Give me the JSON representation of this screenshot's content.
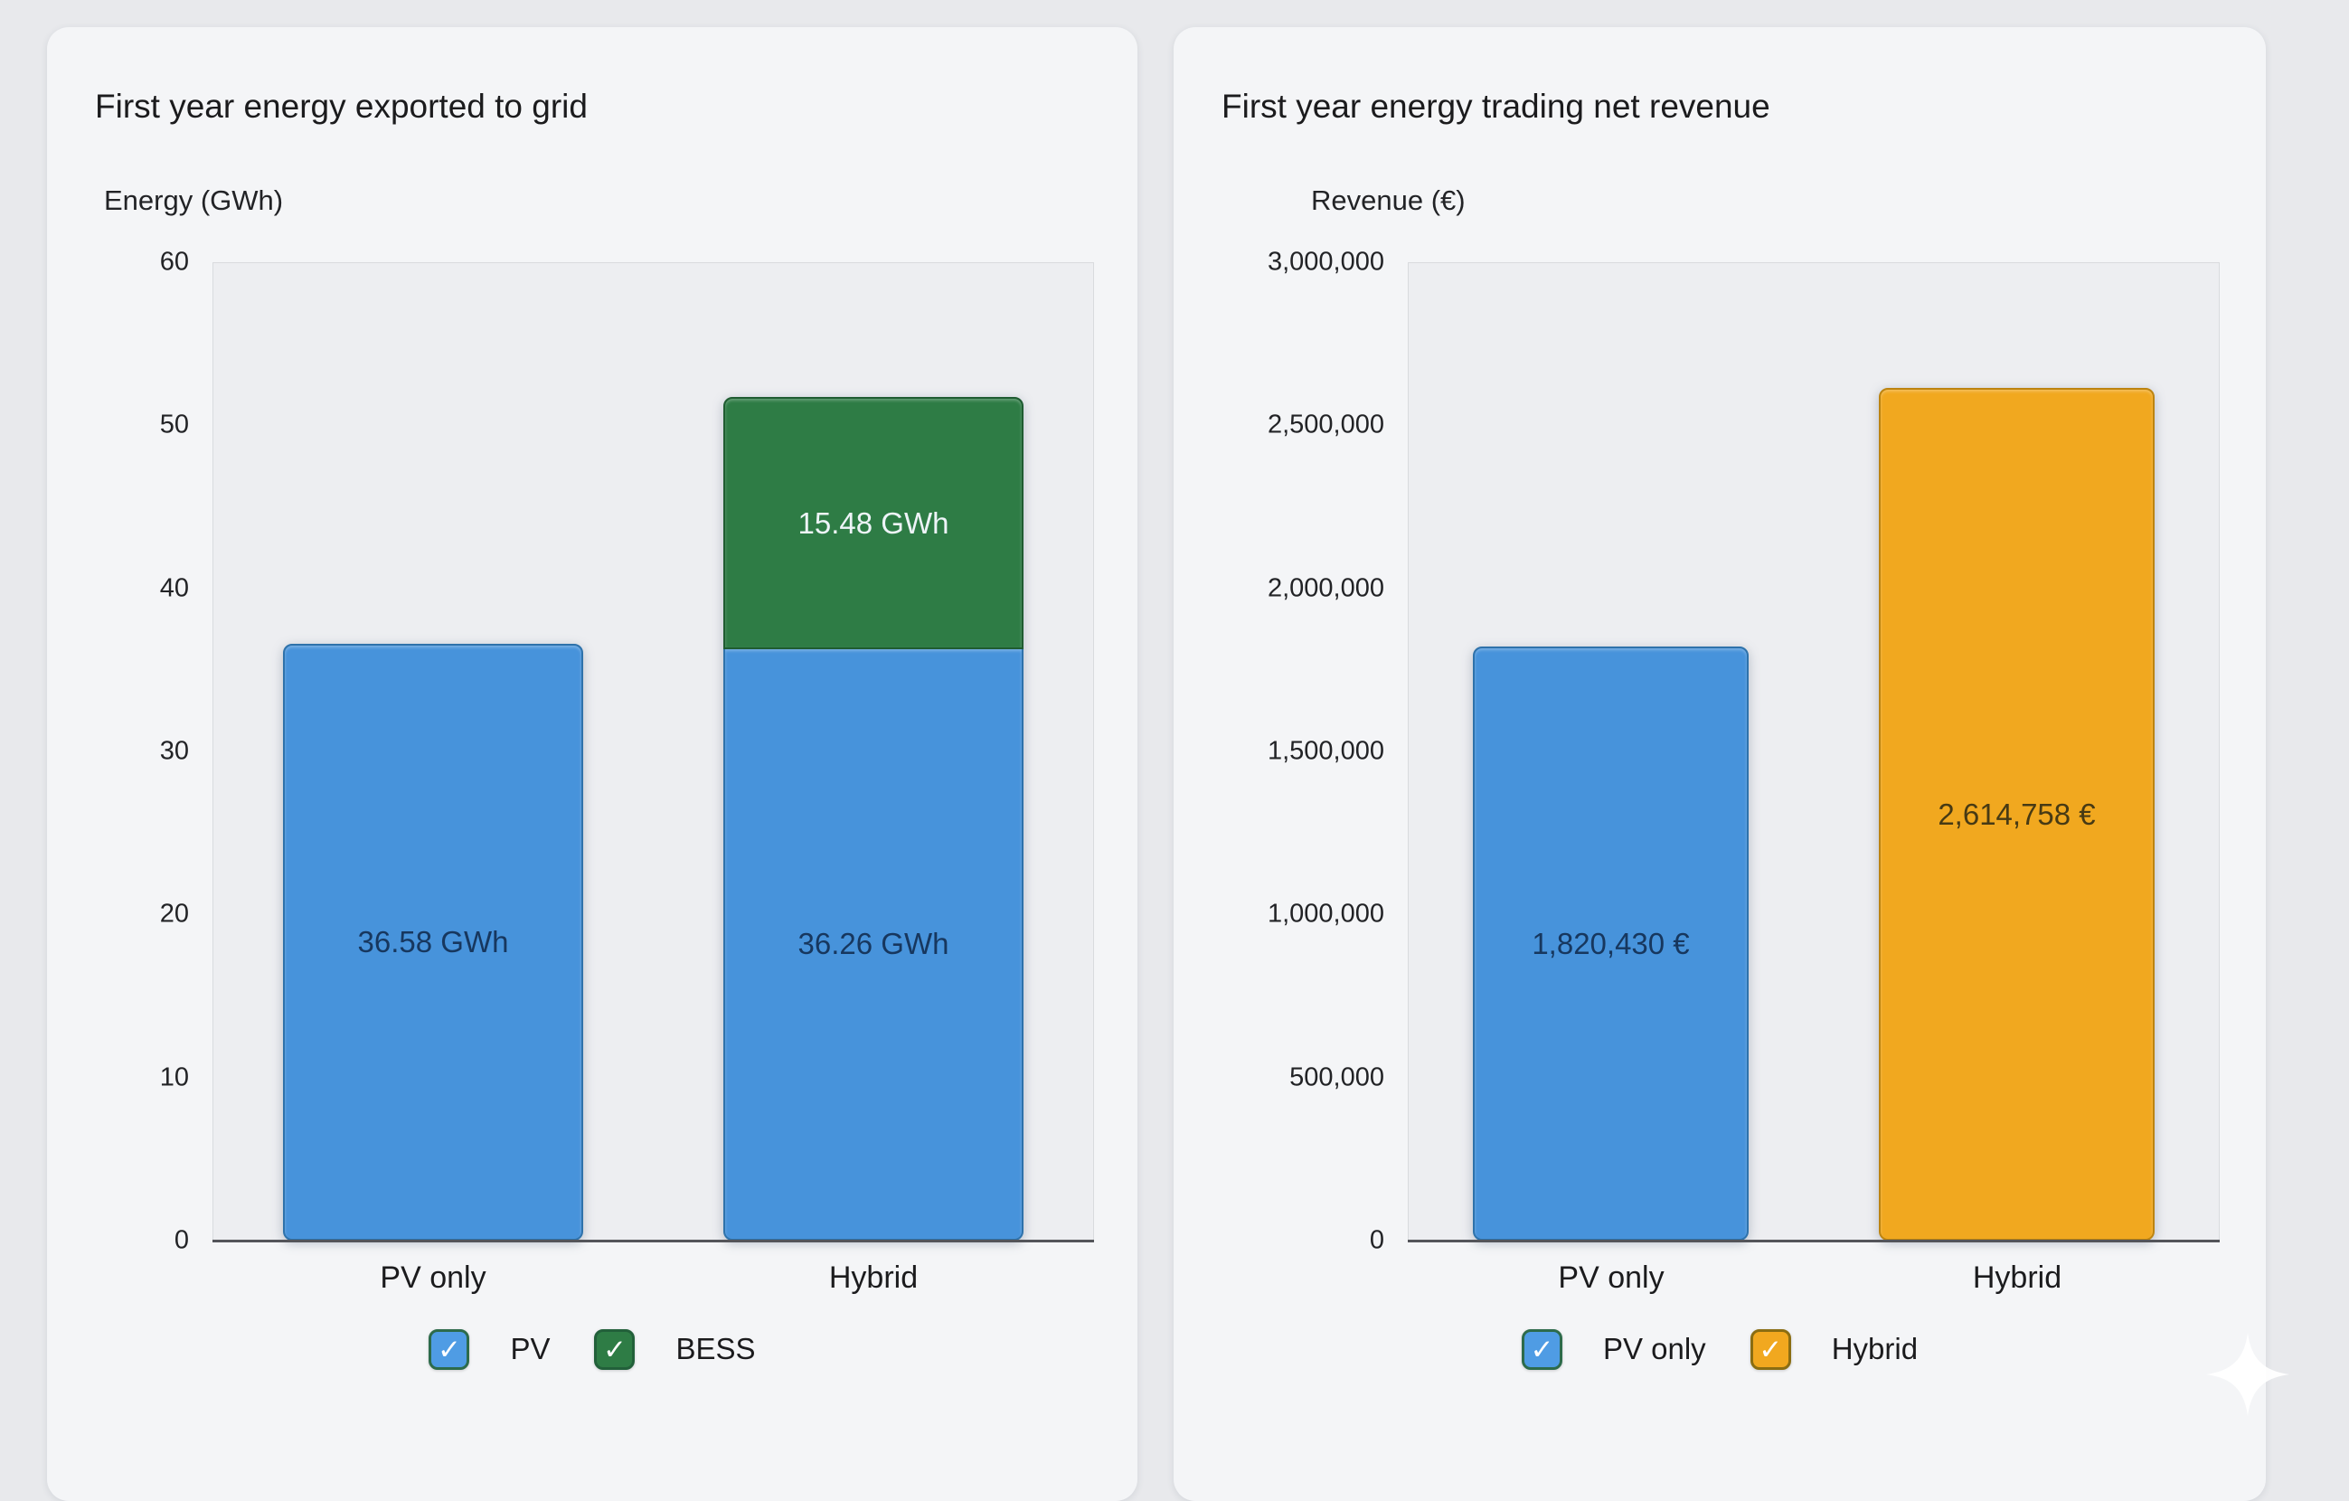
{
  "page": {
    "background": "#e8e9ec",
    "card_background": "#f4f5f7",
    "check_glyph": "✓"
  },
  "chart_data": [
    {
      "type": "bar",
      "stacked": true,
      "title": "First year energy exported to grid",
      "axis_title": "Energy (GWh)",
      "categories": [
        "PV only",
        "Hybrid"
      ],
      "ylim": [
        0,
        60
      ],
      "ytick_labels": [
        "60",
        "50",
        "40",
        "30",
        "20",
        "10",
        "0"
      ],
      "grid": false,
      "legend_position": "bottom",
      "series": [
        {
          "name": "PV",
          "color": "#4793db",
          "border_color": "#2e72ab",
          "values": [
            36.58,
            36.26
          ],
          "value_labels": [
            "36.58 GWh",
            "36.26 GWh"
          ],
          "label_color": "#17375e"
        },
        {
          "name": "BESS",
          "color": "#2e7c45",
          "border_color": "#1f5c31",
          "values": [
            null,
            15.48
          ],
          "value_labels": [
            null,
            "15.48 GWh"
          ],
          "label_color": "#eef4f8"
        }
      ],
      "legend": [
        {
          "label": "PV",
          "color": "#4f9ce4",
          "border": "#2d6b4b",
          "checked": true
        },
        {
          "label": "BESS",
          "color": "#2e7c45",
          "border": "#22603a",
          "checked": true
        }
      ]
    },
    {
      "type": "bar",
      "stacked": false,
      "title": "First year energy trading net revenue",
      "axis_title": "Revenue (€)",
      "categories": [
        "PV only",
        "Hybrid"
      ],
      "ylim": [
        0,
        3000000
      ],
      "ytick_labels": [
        "3,000,000",
        "2,500,000",
        "2,000,000",
        "1,500,000",
        "1,000,000",
        "500,000",
        "0"
      ],
      "grid": false,
      "legend_position": "bottom",
      "series": [
        {
          "name": "PV only",
          "color": "#4793db",
          "border_color": "#2e72ab",
          "values": [
            1820430,
            null
          ],
          "value_labels": [
            "1,820,430 €",
            null
          ],
          "label_color": "#17375e"
        },
        {
          "name": "Hybrid",
          "color": "#f1a81f",
          "border_color": "#bd8410",
          "values": [
            null,
            2614758
          ],
          "value_labels": [
            null,
            "2,614,758 €"
          ],
          "label_color": "#473a14"
        }
      ],
      "legend": [
        {
          "label": "PV only",
          "color": "#4f9ce4",
          "border": "#2d6b4b",
          "checked": true
        },
        {
          "label": "Hybrid",
          "color": "#f1a81f",
          "border": "#8a6d12",
          "checked": true
        }
      ]
    }
  ],
  "icons": {
    "sparkle_icon": "sparkle"
  }
}
